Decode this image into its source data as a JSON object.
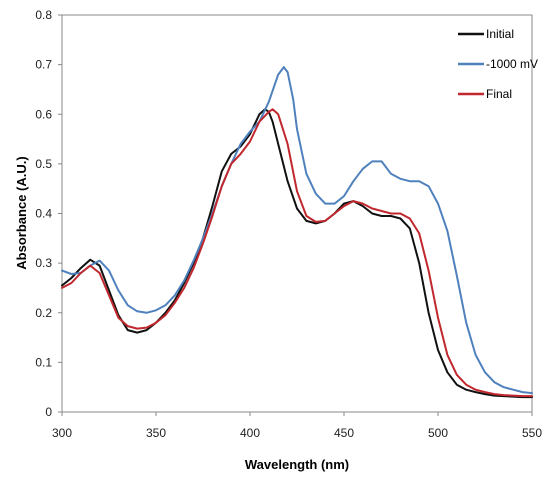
{
  "chart_data": {
    "type": "line",
    "xlabel": "Wavelength  (nm)",
    "ylabel": "Absorbance  (A.U.)",
    "xlim": [
      300,
      550
    ],
    "ylim": [
      0,
      0.8
    ],
    "xticks": [
      "300",
      "350",
      "400",
      "450",
      "500",
      "550"
    ],
    "yticks": [
      "0",
      "0.1",
      "0.2",
      "0.3",
      "0.4",
      "0.5",
      "0.6",
      "0.7",
      "0.8"
    ],
    "grid": false,
    "legend_position": "top-right",
    "series": [
      {
        "name": "Initial",
        "color": "#111111",
        "x": [
          300,
          305,
          310,
          315,
          320,
          325,
          330,
          335,
          340,
          345,
          350,
          355,
          360,
          365,
          370,
          375,
          380,
          385,
          390,
          395,
          400,
          405,
          408,
          410,
          412,
          415,
          420,
          425,
          430,
          435,
          440,
          445,
          450,
          455,
          460,
          465,
          470,
          475,
          480,
          485,
          490,
          495,
          500,
          505,
          510,
          515,
          520,
          525,
          530,
          535,
          540,
          545,
          550
        ],
        "y": [
          0.255,
          0.27,
          0.29,
          0.307,
          0.295,
          0.245,
          0.195,
          0.165,
          0.16,
          0.165,
          0.18,
          0.2,
          0.225,
          0.26,
          0.3,
          0.35,
          0.415,
          0.485,
          0.52,
          0.535,
          0.56,
          0.6,
          0.61,
          0.605,
          0.585,
          0.54,
          0.465,
          0.41,
          0.385,
          0.38,
          0.385,
          0.4,
          0.42,
          0.425,
          0.415,
          0.4,
          0.395,
          0.395,
          0.39,
          0.37,
          0.3,
          0.2,
          0.125,
          0.08,
          0.055,
          0.045,
          0.04,
          0.036,
          0.033,
          0.032,
          0.031,
          0.03,
          0.03
        ]
      },
      {
        "name": "-1000 mV",
        "color": "#4f81bd",
        "x": [
          300,
          305,
          310,
          315,
          320,
          325,
          330,
          335,
          340,
          345,
          350,
          355,
          360,
          365,
          370,
          375,
          380,
          385,
          390,
          395,
          400,
          405,
          410,
          415,
          418,
          420,
          423,
          425,
          430,
          435,
          440,
          445,
          450,
          455,
          460,
          465,
          470,
          475,
          480,
          485,
          490,
          495,
          500,
          505,
          510,
          515,
          520,
          525,
          530,
          535,
          540,
          545,
          550
        ],
        "y": [
          0.285,
          0.278,
          0.28,
          0.295,
          0.305,
          0.285,
          0.245,
          0.215,
          0.203,
          0.2,
          0.205,
          0.215,
          0.235,
          0.265,
          0.305,
          0.35,
          0.4,
          0.455,
          0.5,
          0.54,
          0.565,
          0.585,
          0.625,
          0.68,
          0.695,
          0.685,
          0.63,
          0.57,
          0.48,
          0.44,
          0.42,
          0.42,
          0.435,
          0.465,
          0.49,
          0.505,
          0.505,
          0.48,
          0.47,
          0.465,
          0.465,
          0.455,
          0.42,
          0.365,
          0.275,
          0.18,
          0.115,
          0.08,
          0.06,
          0.05,
          0.045,
          0.04,
          0.038
        ]
      },
      {
        "name": "Final",
        "color": "#c0282e",
        "x": [
          300,
          305,
          310,
          315,
          320,
          325,
          330,
          335,
          340,
          345,
          350,
          355,
          360,
          365,
          370,
          375,
          380,
          385,
          390,
          395,
          400,
          405,
          410,
          412,
          415,
          420,
          425,
          430,
          435,
          440,
          445,
          450,
          455,
          460,
          465,
          470,
          475,
          480,
          485,
          490,
          495,
          500,
          505,
          510,
          515,
          520,
          525,
          530,
          535,
          540,
          545,
          550
        ],
        "y": [
          0.25,
          0.26,
          0.28,
          0.295,
          0.28,
          0.235,
          0.19,
          0.173,
          0.168,
          0.17,
          0.18,
          0.195,
          0.22,
          0.25,
          0.29,
          0.34,
          0.395,
          0.455,
          0.5,
          0.52,
          0.545,
          0.585,
          0.605,
          0.61,
          0.6,
          0.54,
          0.445,
          0.395,
          0.383,
          0.385,
          0.4,
          0.415,
          0.425,
          0.42,
          0.41,
          0.405,
          0.4,
          0.4,
          0.39,
          0.36,
          0.285,
          0.19,
          0.115,
          0.075,
          0.055,
          0.045,
          0.04,
          0.036,
          0.034,
          0.033,
          0.032,
          0.032
        ]
      }
    ]
  }
}
